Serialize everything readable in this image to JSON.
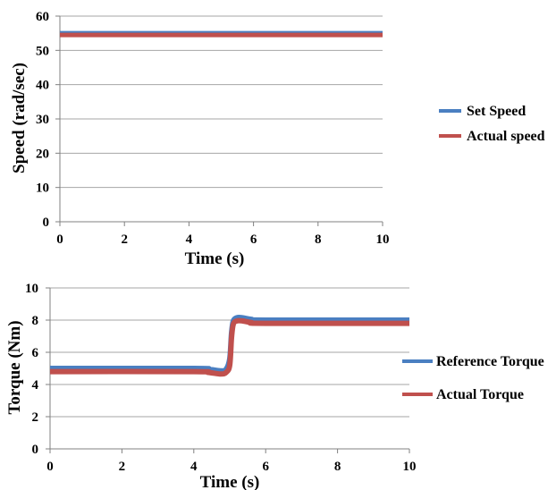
{
  "chart_data": [
    {
      "type": "line",
      "xlabel": "Time (s)",
      "ylabel": "Speed (rad/sec)",
      "xlim": [
        0,
        10
      ],
      "ylim": [
        0,
        60
      ],
      "xticks": [
        "0",
        "2",
        "4",
        "6",
        "8",
        "10"
      ],
      "yticks": [
        "0",
        "10",
        "20",
        "30",
        "40",
        "50",
        "60"
      ],
      "grid": "horizontal",
      "legend_position": "right",
      "series": [
        {
          "name": "Set Speed",
          "color": "#4a7fc1",
          "x": [
            0,
            10
          ],
          "y": [
            55,
            55
          ]
        },
        {
          "name": "Actual speed",
          "color": "#c0504d",
          "x": [
            0,
            10
          ],
          "y": [
            54.5,
            54.5
          ]
        }
      ]
    },
    {
      "type": "line",
      "xlabel": "Time (s)",
      "ylabel": "Torque (Nm)",
      "xlim": [
        0,
        10
      ],
      "ylim": [
        0,
        10
      ],
      "xticks": [
        "0",
        "2",
        "4",
        "6",
        "8",
        "10"
      ],
      "yticks": [
        "0",
        "2",
        "4",
        "6",
        "8",
        "10"
      ],
      "grid": "horizontal",
      "legend_position": "right",
      "series": [
        {
          "name": "Reference Torque",
          "color": "#4a7fc1",
          "x": [
            0,
            4,
            4.4,
            4.75,
            4.9,
            5.0,
            5.05,
            5.1,
            5.2,
            5.35,
            5.6,
            6,
            10
          ],
          "y": [
            5,
            5,
            4.95,
            4.85,
            4.95,
            5.6,
            7.2,
            7.95,
            8.15,
            8.15,
            8.05,
            8,
            8
          ]
        },
        {
          "name": "Actual Torque",
          "color": "#c0504d",
          "x": [
            0,
            4,
            4.4,
            4.75,
            4.9,
            5.0,
            5.05,
            5.1,
            5.2,
            5.35,
            5.6,
            6,
            10
          ],
          "y": [
            4.8,
            4.8,
            4.75,
            4.65,
            4.75,
            5.2,
            6.9,
            7.75,
            7.95,
            7.95,
            7.85,
            7.8,
            7.8
          ]
        }
      ]
    }
  ]
}
